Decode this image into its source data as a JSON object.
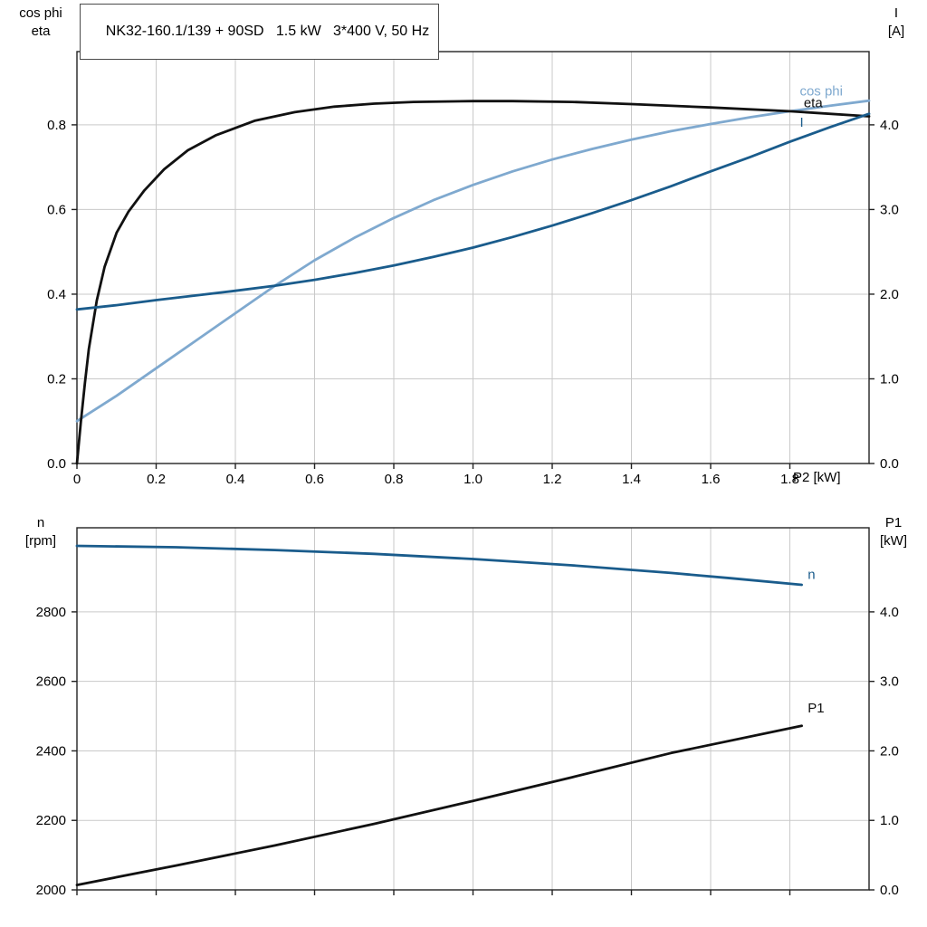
{
  "colors": {
    "grid": "#c9c9c9",
    "axis": "#222222",
    "background": "#ffffff",
    "black_series": "#111111",
    "dark_blue_series": "#1a5c8c",
    "light_blue_series": "#7fa9cf"
  },
  "chart_data": [
    {
      "type": "line",
      "title": "NK32-160.1/139 + 90SD   1.5 kW   3*400 V, 50 Hz",
      "x_axis": {
        "label": "P2 [kW]",
        "range": [
          0,
          2
        ],
        "ticks": [
          0,
          0.2,
          0.4,
          0.6,
          0.8,
          1,
          1.2,
          1.4,
          1.6,
          1.8
        ],
        "tick_labels": [
          "0",
          "0.2",
          "0.4",
          "0.6",
          "0.8",
          "1.0",
          "1.2",
          "1.4",
          "1.6",
          "1.8"
        ]
      },
      "y_left": {
        "label_lines": [
          "cos phi",
          "eta"
        ],
        "range": [
          0,
          0.973
        ],
        "ticks": [
          0,
          0.2,
          0.4,
          0.6,
          0.8
        ],
        "tick_labels": [
          "0.0",
          "0.2",
          "0.4",
          "0.6",
          "0.8"
        ]
      },
      "y_right": {
        "label_lines": [
          "I",
          "[A]"
        ],
        "range": [
          0,
          4.865
        ],
        "ticks": [
          0,
          1,
          2,
          3,
          4
        ],
        "tick_labels": [
          "0.0",
          "1.0",
          "2.0",
          "3.0",
          "4.0"
        ]
      },
      "grid": true,
      "legend_position": "curve-end-labels",
      "series": [
        {
          "name": "cos phi",
          "axis": "left",
          "color": "#7fa9cf",
          "x": [
            0,
            0.1,
            0.2,
            0.3,
            0.4,
            0.5,
            0.6,
            0.7,
            0.8,
            0.9,
            1.0,
            1.1,
            1.2,
            1.3,
            1.4,
            1.5,
            1.6,
            1.7,
            1.8,
            1.9,
            2.0
          ],
          "y": [
            0.1,
            0.16,
            0.225,
            0.29,
            0.355,
            0.42,
            0.48,
            0.533,
            0.58,
            0.622,
            0.658,
            0.69,
            0.718,
            0.743,
            0.765,
            0.785,
            0.802,
            0.818,
            0.832,
            0.845,
            0.857
          ],
          "label_pos": {
            "x": 1.825,
            "y": 0.88
          }
        },
        {
          "name": "eta",
          "axis": "left",
          "color": "#111111",
          "x": [
            0,
            0.01,
            0.02,
            0.03,
            0.05,
            0.07,
            0.1,
            0.13,
            0.17,
            0.22,
            0.28,
            0.35,
            0.45,
            0.55,
            0.65,
            0.75,
            0.85,
            1.0,
            1.1,
            1.25,
            1.4,
            1.6,
            1.8,
            2.0
          ],
          "y": [
            0,
            0.1,
            0.19,
            0.27,
            0.385,
            0.465,
            0.545,
            0.595,
            0.645,
            0.695,
            0.74,
            0.775,
            0.81,
            0.83,
            0.843,
            0.85,
            0.854,
            0.856,
            0.856,
            0.854,
            0.849,
            0.841,
            0.832,
            0.82
          ],
          "label_pos": {
            "x": 1.835,
            "y": 0.852
          }
        },
        {
          "name": "I",
          "axis": "right",
          "color": "#1a5c8c",
          "x": [
            0,
            0.1,
            0.2,
            0.3,
            0.4,
            0.5,
            0.6,
            0.7,
            0.8,
            0.9,
            1.0,
            1.1,
            1.2,
            1.3,
            1.4,
            1.5,
            1.6,
            1.7,
            1.8,
            1.9,
            2.0
          ],
          "y": [
            1.82,
            1.87,
            1.93,
            1.985,
            2.04,
            2.1,
            2.17,
            2.25,
            2.34,
            2.44,
            2.55,
            2.675,
            2.81,
            2.955,
            3.11,
            3.275,
            3.45,
            3.62,
            3.8,
            3.97,
            4.13
          ],
          "label_pos": {
            "x": 1.825,
            "y": 4.03
          }
        }
      ]
    },
    {
      "type": "line",
      "x_axis": {
        "label": "",
        "range": [
          0,
          2
        ],
        "ticks": [
          0,
          0.2,
          0.4,
          0.6,
          0.8,
          1,
          1.2,
          1.4,
          1.6,
          1.8
        ],
        "tick_labels": []
      },
      "y_left": {
        "label_lines": [
          "n",
          "[rpm]"
        ],
        "range": [
          2000,
          3042
        ],
        "ticks": [
          2000,
          2200,
          2400,
          2600,
          2800
        ],
        "tick_labels": [
          "2000",
          "2200",
          "2400",
          "2600",
          "2800"
        ]
      },
      "y_right": {
        "label_lines": [
          "P1",
          "[kW]"
        ],
        "range": [
          0,
          5.21
        ],
        "ticks": [
          0,
          1,
          2,
          3,
          4
        ],
        "tick_labels": [
          "0.0",
          "1.0",
          "2.0",
          "3.0",
          "4.0"
        ]
      },
      "grid": true,
      "legend_position": "curve-end-labels",
      "series": [
        {
          "name": "n",
          "axis": "left",
          "color": "#1a5c8c",
          "x": [
            0,
            0.25,
            0.5,
            0.75,
            1.0,
            1.25,
            1.5,
            1.65,
            1.83
          ],
          "y": [
            2990,
            2986,
            2978,
            2967,
            2952,
            2934,
            2912,
            2897,
            2878
          ],
          "label_pos": {
            "x": 1.845,
            "y": 2908
          }
        },
        {
          "name": "P1",
          "axis": "right",
          "color": "#111111",
          "x": [
            0,
            0.25,
            0.5,
            0.75,
            1.0,
            1.25,
            1.5,
            1.83
          ],
          "y": [
            0.07,
            0.35,
            0.64,
            0.95,
            1.28,
            1.62,
            1.97,
            2.36
          ],
          "label_pos": {
            "x": 1.845,
            "y": 2.62
          }
        }
      ]
    }
  ]
}
